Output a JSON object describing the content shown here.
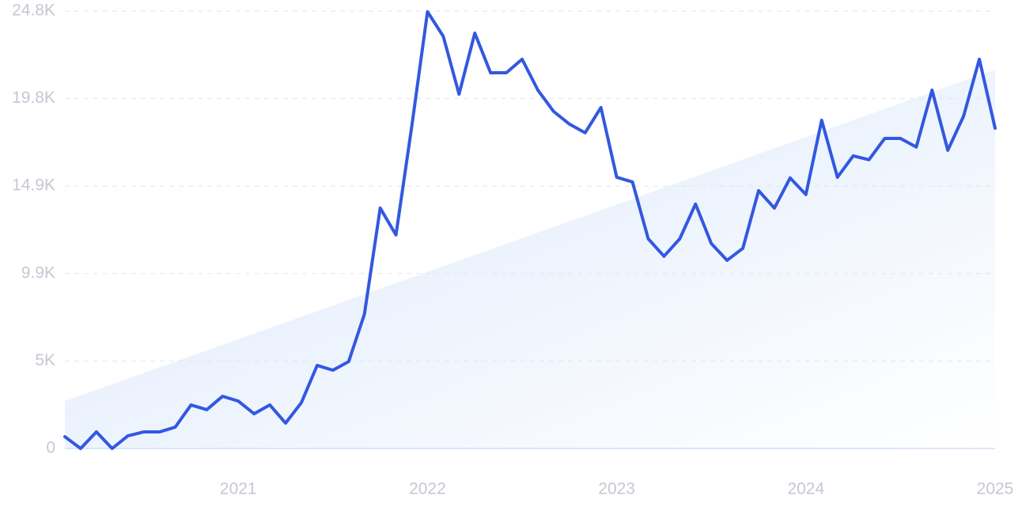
{
  "chart_data": {
    "type": "line",
    "categories": [
      null,
      null,
      null,
      null,
      null,
      null,
      null,
      null,
      null,
      null,
      null,
      "2021",
      null,
      null,
      null,
      null,
      null,
      null,
      null,
      null,
      null,
      null,
      null,
      "2022",
      null,
      null,
      null,
      null,
      null,
      null,
      null,
      null,
      null,
      null,
      null,
      "2023",
      null,
      null,
      null,
      null,
      null,
      null,
      null,
      null,
      null,
      null,
      null,
      "2024",
      null,
      null,
      null,
      null,
      null,
      null,
      null,
      null,
      null,
      null,
      null,
      "2025"
    ],
    "values": [
      670,
      0,
      940,
      0,
      720,
      940,
      940,
      1210,
      2470,
      2200,
      2960,
      2690,
      1970,
      2470,
      1440,
      2600,
      4710,
      4440,
      4930,
      7620,
      13630,
      12110,
      18250,
      24760,
      23370,
      20090,
      23550,
      21300,
      21300,
      22070,
      20320,
      19110,
      18390,
      17900,
      19330,
      15380,
      15110,
      11890,
      10900,
      11890,
      13860,
      11620,
      10670,
      11350,
      14620,
      13630,
      15340,
      14400,
      18610,
      15380,
      16590,
      16370,
      17580,
      17580,
      17090,
      20320,
      16910,
      18840,
      22070,
      18160
    ],
    "color": "#3358e0",
    "trend_values": [
      2690,
      21480
    ],
    "trend_color": "#dbe8fb",
    "ylim": [
      0,
      24800
    ],
    "yticks": [
      0,
      {
        "value": 4960,
        "label": "5K"
      },
      {
        "value": 9920,
        "label": "9.9K"
      },
      {
        "value": 14880,
        "label": "14.9K"
      },
      {
        "value": 19840,
        "label": "19.8K"
      },
      {
        "value": 24800,
        "label": "24.8K"
      }
    ],
    "grid": true
  }
}
